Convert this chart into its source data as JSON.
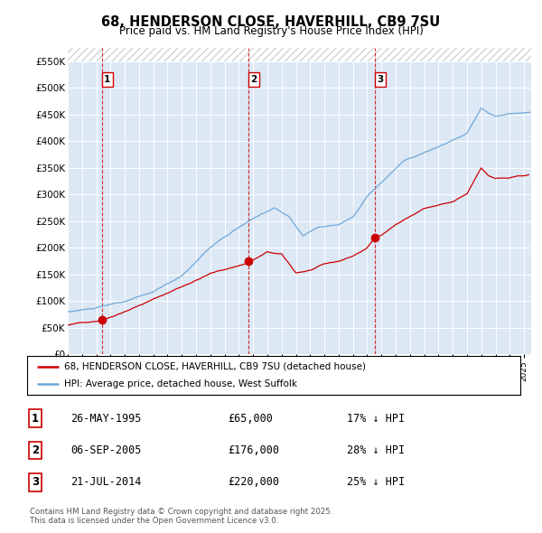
{
  "title": "68, HENDERSON CLOSE, HAVERHILL, CB9 7SU",
  "subtitle": "Price paid vs. HM Land Registry's House Price Index (HPI)",
  "ylim": [
    0,
    575000
  ],
  "yticks": [
    0,
    50000,
    100000,
    150000,
    200000,
    250000,
    300000,
    350000,
    400000,
    450000,
    500000,
    550000
  ],
  "ytick_labels": [
    "£0",
    "£50K",
    "£100K",
    "£150K",
    "£200K",
    "£250K",
    "£300K",
    "£350K",
    "£400K",
    "£450K",
    "£500K",
    "£550K"
  ],
  "hpi_color": "#6fa8d6",
  "price_color": "#cc0000",
  "vline_color": "#cc0000",
  "background_color": "#dde8f5",
  "sale_dates_num": [
    1995.4,
    2005.67,
    2014.55
  ],
  "sale_prices": [
    65000,
    176000,
    220000
  ],
  "sale_labels": [
    "1",
    "2",
    "3"
  ],
  "legend_entries": [
    "68, HENDERSON CLOSE, HAVERHILL, CB9 7SU (detached house)",
    "HPI: Average price, detached house, West Suffolk"
  ],
  "footer": "Contains HM Land Registry data © Crown copyright and database right 2025.\nThis data is licensed under the Open Government Licence v3.0.",
  "table_rows": [
    [
      "1",
      "26-MAY-1995",
      "£65,000",
      "17% ↓ HPI"
    ],
    [
      "2",
      "06-SEP-2005",
      "£176,000",
      "28% ↓ HPI"
    ],
    [
      "3",
      "21-JUL-2014",
      "£220,000",
      "25% ↓ HPI"
    ]
  ]
}
